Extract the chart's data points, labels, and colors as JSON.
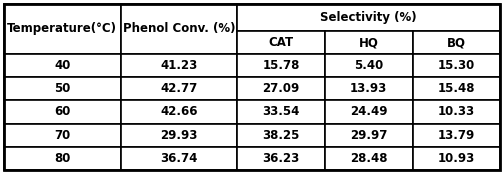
{
  "header_row1": [
    "Temperature(°C)",
    "Phenol Conv. (%)",
    "Selectivity (%)"
  ],
  "header_row2": [
    "CAT",
    "HQ",
    "BQ"
  ],
  "rows": [
    [
      "40",
      "41.23",
      "15.78",
      "5.40",
      "15.30"
    ],
    [
      "50",
      "42.77",
      "27.09",
      "13.93",
      "15.48"
    ],
    [
      "60",
      "42.66",
      "33.54",
      "24.49",
      "10.33"
    ],
    [
      "70",
      "29.93",
      "38.25",
      "29.97",
      "13.79"
    ],
    [
      "80",
      "36.74",
      "36.23",
      "28.48",
      "10.93"
    ]
  ],
  "bg_color": "#ffffff",
  "border_color": "#000000",
  "text_color": "#000000",
  "font_size": 8.5,
  "header_font_size": 8.5,
  "fig_width": 5.04,
  "fig_height": 1.74,
  "dpi": 100
}
